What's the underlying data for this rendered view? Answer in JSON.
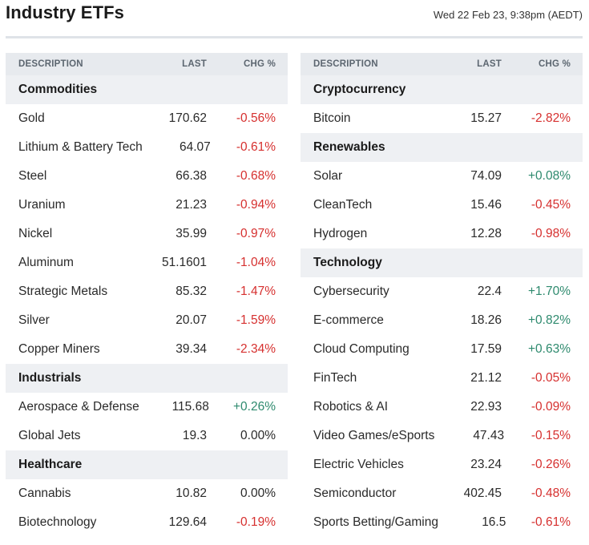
{
  "header": {
    "title": "Industry ETFs",
    "timestamp": "Wed 22 Feb 23, 9:38pm (AEDT)"
  },
  "columns": {
    "description": "DESCRIPTION",
    "last": "LAST",
    "chg": "CHG %"
  },
  "colors": {
    "negative": "#d6302f",
    "positive": "#2e8a6e",
    "header_bg": "#e7eaee",
    "group_bg": "#eef0f3"
  },
  "left_groups": [
    {
      "name": "Commodities",
      "items": [
        {
          "desc": "Gold",
          "last": "170.62",
          "chg": "-0.56%"
        },
        {
          "desc": "Lithium & Battery Tech",
          "last": "64.07",
          "chg": "-0.61%"
        },
        {
          "desc": "Steel",
          "last": "66.38",
          "chg": "-0.68%"
        },
        {
          "desc": "Uranium",
          "last": "21.23",
          "chg": "-0.94%"
        },
        {
          "desc": "Nickel",
          "last": "35.99",
          "chg": "-0.97%"
        },
        {
          "desc": "Aluminum",
          "last": "51.1601",
          "chg": "-1.04%"
        },
        {
          "desc": "Strategic Metals",
          "last": "85.32",
          "chg": "-1.47%"
        },
        {
          "desc": "Silver",
          "last": "20.07",
          "chg": "-1.59%"
        },
        {
          "desc": "Copper Miners",
          "last": "39.34",
          "chg": "-2.34%"
        }
      ]
    },
    {
      "name": "Industrials",
      "items": [
        {
          "desc": "Aerospace & Defense",
          "last": "115.68",
          "chg": "+0.26%"
        },
        {
          "desc": "Global Jets",
          "last": "19.3",
          "chg": "0.00%"
        }
      ]
    },
    {
      "name": "Healthcare",
      "items": [
        {
          "desc": "Cannabis",
          "last": "10.82",
          "chg": "0.00%"
        },
        {
          "desc": "Biotechnology",
          "last": "129.64",
          "chg": "-0.19%"
        }
      ]
    }
  ],
  "right_groups": [
    {
      "name": "Cryptocurrency",
      "items": [
        {
          "desc": "Bitcoin",
          "last": "15.27",
          "chg": "-2.82%"
        }
      ]
    },
    {
      "name": "Renewables",
      "items": [
        {
          "desc": "Solar",
          "last": "74.09",
          "chg": "+0.08%"
        },
        {
          "desc": "CleanTech",
          "last": "15.46",
          "chg": "-0.45%"
        },
        {
          "desc": "Hydrogen",
          "last": "12.28",
          "chg": "-0.98%"
        }
      ]
    },
    {
      "name": "Technology",
      "items": [
        {
          "desc": "Cybersecurity",
          "last": "22.4",
          "chg": "+1.70%"
        },
        {
          "desc": "E-commerce",
          "last": "18.26",
          "chg": "+0.82%"
        },
        {
          "desc": "Cloud Computing",
          "last": "17.59",
          "chg": "+0.63%"
        },
        {
          "desc": "FinTech",
          "last": "21.12",
          "chg": "-0.05%"
        },
        {
          "desc": "Robotics & AI",
          "last": "22.93",
          "chg": "-0.09%"
        },
        {
          "desc": "Video Games/eSports",
          "last": "47.43",
          "chg": "-0.15%"
        },
        {
          "desc": "Electric Vehicles",
          "last": "23.24",
          "chg": "-0.26%"
        },
        {
          "desc": "Semiconductor",
          "last": "402.45",
          "chg": "-0.48%"
        },
        {
          "desc": "Sports Betting/Gaming",
          "last": "16.5",
          "chg": "-0.61%"
        }
      ]
    }
  ]
}
